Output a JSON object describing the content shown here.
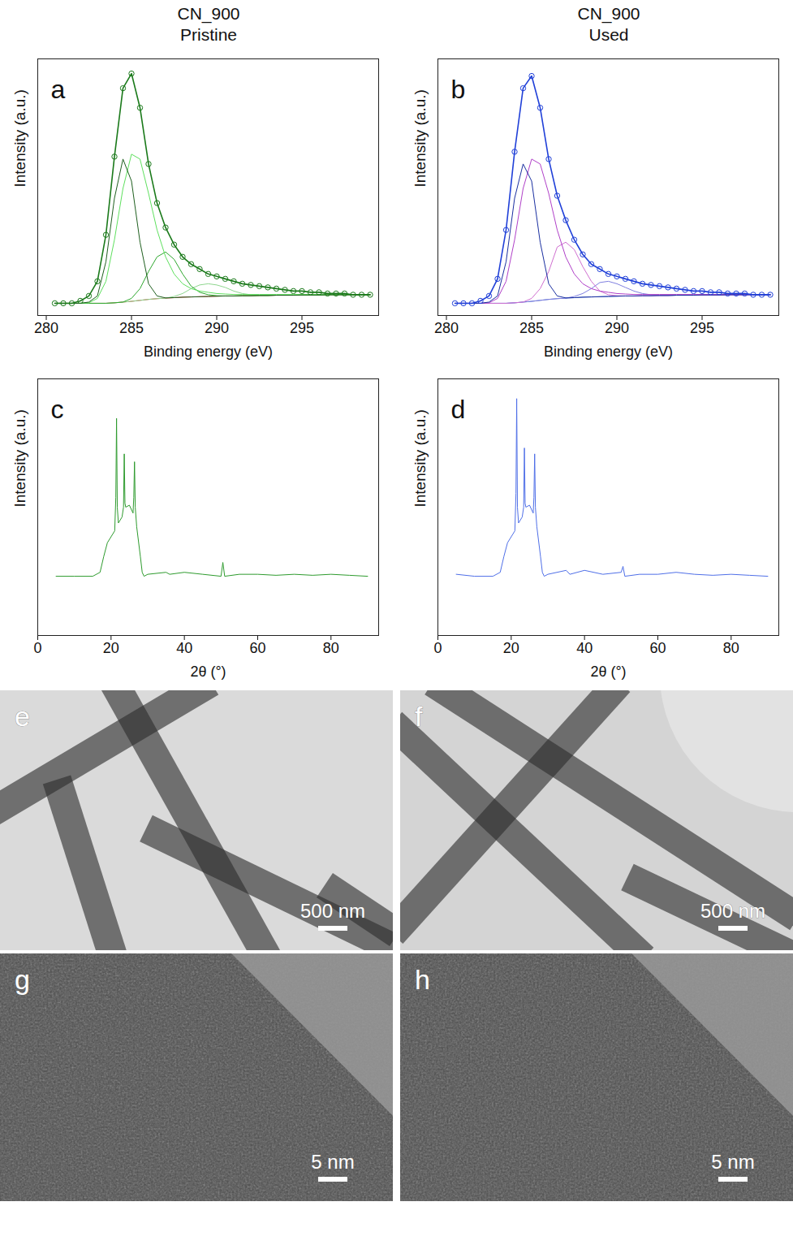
{
  "columns": [
    {
      "sample": "CN_900",
      "condition": "Pristine"
    },
    {
      "sample": "CN_900",
      "condition": "Used"
    }
  ],
  "chart_data": [
    {
      "type": "line",
      "panel_label": "a",
      "x_label": "Binding energy (eV)",
      "y_label": "Intensity (a.u.)",
      "tick_labels": "x",
      "xlim": [
        279.5,
        299.5
      ],
      "xticks": [
        280,
        285,
        290,
        295
      ],
      "ylim": [
        0,
        1.05
      ],
      "x": [
        280.5,
        281,
        281.5,
        282,
        282.5,
        283,
        283.5,
        284,
        284.5,
        285,
        285.5,
        286,
        286.5,
        287,
        287.5,
        288,
        288.5,
        289,
        289.5,
        290,
        290.5,
        291,
        291.5,
        292,
        292.5,
        293,
        293.5,
        294,
        294.5,
        295,
        295.5,
        296,
        296.5,
        297,
        297.5,
        298,
        298.5,
        299
      ],
      "series": [
        {
          "color": "#d04040",
          "values": [
            0.05,
            0.05,
            0.05,
            0.05,
            0.05,
            0.05,
            0.05,
            0.052,
            0.055,
            0.058,
            0.062,
            0.066,
            0.069,
            0.071,
            0.073,
            0.075,
            0.076,
            0.077,
            0.078,
            0.079,
            0.08,
            0.08,
            0.081,
            0.081,
            0.082,
            0.082,
            0.083,
            0.083,
            0.083,
            0.084,
            0.084,
            0.084,
            0.085,
            0.085,
            0.085,
            0.085,
            0.085,
            0.085
          ]
        },
        {
          "color": "#8fd68f",
          "values": [
            0.05,
            0.05,
            0.05,
            0.05,
            0.05,
            0.05,
            0.05,
            0.052,
            0.055,
            0.058,
            0.062,
            0.066,
            0.069,
            0.071,
            0.078,
            0.09,
            0.11,
            0.125,
            0.13,
            0.125,
            0.115,
            0.1,
            0.09,
            0.085,
            0.082,
            0.082,
            0.083,
            0.083,
            0.083,
            0.084,
            0.084,
            0.084,
            0.085,
            0.085,
            0.085,
            0.085,
            0.085,
            0.085
          ]
        },
        {
          "color": "#2fa82f",
          "values": [
            0.05,
            0.05,
            0.05,
            0.05,
            0.05,
            0.05,
            0.05,
            0.052,
            0.055,
            0.07,
            0.11,
            0.18,
            0.24,
            0.26,
            0.23,
            0.17,
            0.12,
            0.095,
            0.085,
            0.081,
            0.08,
            0.08,
            0.081,
            0.081,
            0.082,
            0.082,
            0.083,
            0.083,
            0.083,
            0.084,
            0.084,
            0.084,
            0.085,
            0.085,
            0.085,
            0.085,
            0.085,
            0.085
          ]
        },
        {
          "color": "#5ee05e",
          "values": [
            0.05,
            0.05,
            0.05,
            0.05,
            0.052,
            0.07,
            0.14,
            0.31,
            0.52,
            0.66,
            0.64,
            0.5,
            0.35,
            0.24,
            0.17,
            0.13,
            0.11,
            0.1,
            0.095,
            0.09,
            0.088,
            0.086,
            0.086,
            0.086,
            0.086,
            0.086,
            0.086,
            0.086,
            0.086,
            0.086,
            0.086,
            0.086,
            0.086,
            0.086,
            0.086,
            0.086,
            0.086,
            0.086
          ]
        },
        {
          "color": "#1f5f1f",
          "values": [
            0.05,
            0.05,
            0.05,
            0.05,
            0.055,
            0.08,
            0.22,
            0.48,
            0.64,
            0.55,
            0.3,
            0.13,
            0.08,
            0.072,
            0.073,
            0.075,
            0.076,
            0.077,
            0.078,
            0.079,
            0.08,
            0.08,
            0.081,
            0.081,
            0.082,
            0.082,
            0.083,
            0.083,
            0.083,
            0.084,
            0.084,
            0.084,
            0.085,
            0.085,
            0.085,
            0.085,
            0.085,
            0.085
          ]
        },
        {
          "color": "#1b7a1b",
          "marker": "circle",
          "values": [
            0.05,
            0.05,
            0.05,
            0.06,
            0.08,
            0.14,
            0.33,
            0.65,
            0.93,
            0.99,
            0.85,
            0.62,
            0.46,
            0.36,
            0.29,
            0.24,
            0.21,
            0.19,
            0.17,
            0.16,
            0.15,
            0.14,
            0.13,
            0.125,
            0.12,
            0.115,
            0.11,
            0.105,
            0.1,
            0.1,
            0.095,
            0.095,
            0.09,
            0.09,
            0.09,
            0.085,
            0.085,
            0.085
          ]
        }
      ]
    },
    {
      "type": "line",
      "panel_label": "b",
      "x_label": "Binding energy (eV)",
      "y_label": "Intensity (a.u.)",
      "tick_labels": "x",
      "xlim": [
        279.5,
        299.5
      ],
      "xticks": [
        280,
        285,
        290,
        295
      ],
      "ylim": [
        0,
        1.05
      ],
      "x": [
        280.5,
        281,
        281.5,
        282,
        282.5,
        283,
        283.5,
        284,
        284.5,
        285,
        285.5,
        286,
        286.5,
        287,
        287.5,
        288,
        288.5,
        289,
        289.5,
        290,
        290.5,
        291,
        291.5,
        292,
        292.5,
        293,
        293.5,
        294,
        294.5,
        295,
        295.5,
        296,
        296.5,
        297,
        297.5,
        298,
        298.5,
        299
      ],
      "series": [
        {
          "color": "#6a8ad8",
          "values": [
            0.05,
            0.05,
            0.05,
            0.05,
            0.05,
            0.05,
            0.05,
            0.052,
            0.055,
            0.058,
            0.062,
            0.066,
            0.069,
            0.071,
            0.073,
            0.075,
            0.076,
            0.077,
            0.078,
            0.079,
            0.08,
            0.08,
            0.081,
            0.081,
            0.082,
            0.082,
            0.083,
            0.083,
            0.083,
            0.084,
            0.084,
            0.084,
            0.085,
            0.085,
            0.085,
            0.085,
            0.085,
            0.085
          ]
        },
        {
          "color": "#8080e0",
          "values": [
            0.05,
            0.05,
            0.05,
            0.05,
            0.05,
            0.05,
            0.05,
            0.052,
            0.055,
            0.058,
            0.062,
            0.066,
            0.069,
            0.071,
            0.078,
            0.09,
            0.11,
            0.135,
            0.14,
            0.13,
            0.115,
            0.1,
            0.09,
            0.085,
            0.082,
            0.082,
            0.083,
            0.083,
            0.083,
            0.084,
            0.084,
            0.084,
            0.085,
            0.085,
            0.085,
            0.085,
            0.085,
            0.085
          ]
        },
        {
          "color": "#d070d0",
          "values": [
            0.05,
            0.05,
            0.05,
            0.05,
            0.05,
            0.05,
            0.05,
            0.052,
            0.055,
            0.07,
            0.11,
            0.18,
            0.28,
            0.3,
            0.27,
            0.2,
            0.14,
            0.1,
            0.085,
            0.081,
            0.08,
            0.08,
            0.081,
            0.081,
            0.082,
            0.082,
            0.083,
            0.083,
            0.083,
            0.084,
            0.084,
            0.084,
            0.085,
            0.085,
            0.085,
            0.085,
            0.085,
            0.085
          ]
        },
        {
          "color": "#b040c8",
          "values": [
            0.05,
            0.05,
            0.05,
            0.05,
            0.052,
            0.07,
            0.14,
            0.31,
            0.52,
            0.64,
            0.62,
            0.5,
            0.35,
            0.24,
            0.17,
            0.13,
            0.11,
            0.1,
            0.095,
            0.09,
            0.088,
            0.086,
            0.086,
            0.086,
            0.086,
            0.086,
            0.086,
            0.086,
            0.086,
            0.086,
            0.086,
            0.086,
            0.086,
            0.086,
            0.086,
            0.086,
            0.086,
            0.086
          ]
        },
        {
          "color": "#1a2fa0",
          "values": [
            0.05,
            0.05,
            0.05,
            0.05,
            0.055,
            0.08,
            0.22,
            0.48,
            0.62,
            0.55,
            0.3,
            0.13,
            0.08,
            0.072,
            0.073,
            0.075,
            0.076,
            0.077,
            0.078,
            0.079,
            0.08,
            0.08,
            0.081,
            0.081,
            0.082,
            0.082,
            0.083,
            0.083,
            0.083,
            0.084,
            0.084,
            0.084,
            0.085,
            0.085,
            0.085,
            0.085,
            0.085,
            0.085
          ]
        },
        {
          "color": "#2040d8",
          "marker": "circle",
          "values": [
            0.05,
            0.05,
            0.05,
            0.06,
            0.08,
            0.15,
            0.35,
            0.67,
            0.93,
            0.98,
            0.85,
            0.64,
            0.49,
            0.39,
            0.31,
            0.25,
            0.21,
            0.19,
            0.17,
            0.16,
            0.15,
            0.14,
            0.13,
            0.125,
            0.12,
            0.115,
            0.11,
            0.105,
            0.1,
            0.1,
            0.095,
            0.095,
            0.09,
            0.09,
            0.09,
            0.085,
            0.085,
            0.085
          ]
        }
      ]
    },
    {
      "type": "line",
      "panel_label": "c",
      "x_label": "2θ (°)",
      "y_label": "Intensity (a.u.)",
      "tick_labels": "x",
      "xlim": [
        0,
        93
      ],
      "xticks": [
        0,
        20,
        40,
        60,
        80
      ],
      "ylim": [
        -0.2,
        1.1
      ],
      "x": [
        5,
        10,
        15,
        17,
        18,
        19,
        20,
        21,
        21.3,
        21.5,
        21.7,
        22,
        23,
        23.4,
        23.6,
        23.8,
        24,
        25,
        26,
        26.2,
        26.4,
        26.6,
        27,
        28,
        28.5,
        29,
        30,
        35,
        36,
        40,
        45,
        50,
        50.5,
        51,
        55,
        60,
        65,
        70,
        75,
        80,
        85,
        90
      ],
      "series": [
        {
          "color": "#2e9b2e",
          "values": [
            0.1,
            0.1,
            0.1,
            0.12,
            0.2,
            0.27,
            0.3,
            0.33,
            0.5,
            0.9,
            0.45,
            0.37,
            0.4,
            0.45,
            0.72,
            0.47,
            0.45,
            0.46,
            0.42,
            0.5,
            0.68,
            0.45,
            0.35,
            0.2,
            0.12,
            0.1,
            0.11,
            0.12,
            0.11,
            0.12,
            0.11,
            0.1,
            0.17,
            0.1,
            0.11,
            0.11,
            0.105,
            0.11,
            0.105,
            0.11,
            0.105,
            0.1
          ]
        }
      ]
    },
    {
      "type": "line",
      "panel_label": "d",
      "x_label": "2θ (°)",
      "y_label": "Intensity (a.u.)",
      "tick_labels": "x",
      "xlim": [
        0,
        93
      ],
      "xticks": [
        0,
        20,
        40,
        60,
        80
      ],
      "ylim": [
        -0.2,
        1.1
      ],
      "x": [
        5,
        10,
        15,
        17,
        18,
        19,
        20,
        21,
        21.3,
        21.5,
        21.7,
        22,
        23,
        23.4,
        23.6,
        23.8,
        24,
        25,
        26,
        26.2,
        26.4,
        26.6,
        27,
        28,
        28.5,
        29,
        30,
        35,
        36,
        40,
        45,
        50,
        50.5,
        51,
        55,
        60,
        65,
        70,
        75,
        80,
        85,
        90
      ],
      "series": [
        {
          "color": "#4f6fe8",
          "values": [
            0.11,
            0.1,
            0.1,
            0.12,
            0.2,
            0.27,
            0.3,
            0.33,
            0.52,
            1.0,
            0.45,
            0.37,
            0.4,
            0.45,
            0.75,
            0.47,
            0.45,
            0.46,
            0.42,
            0.5,
            0.72,
            0.45,
            0.35,
            0.2,
            0.12,
            0.1,
            0.11,
            0.13,
            0.11,
            0.13,
            0.11,
            0.12,
            0.15,
            0.1,
            0.11,
            0.11,
            0.12,
            0.11,
            0.105,
            0.11,
            0.105,
            0.1
          ]
        }
      ]
    }
  ],
  "images": [
    {
      "panel_label": "e",
      "scale_bar": "500 nm"
    },
    {
      "panel_label": "f",
      "scale_bar": "500 nm"
    },
    {
      "panel_label": "g",
      "scale_bar": "5 nm"
    },
    {
      "panel_label": "h",
      "scale_bar": "5 nm"
    }
  ]
}
